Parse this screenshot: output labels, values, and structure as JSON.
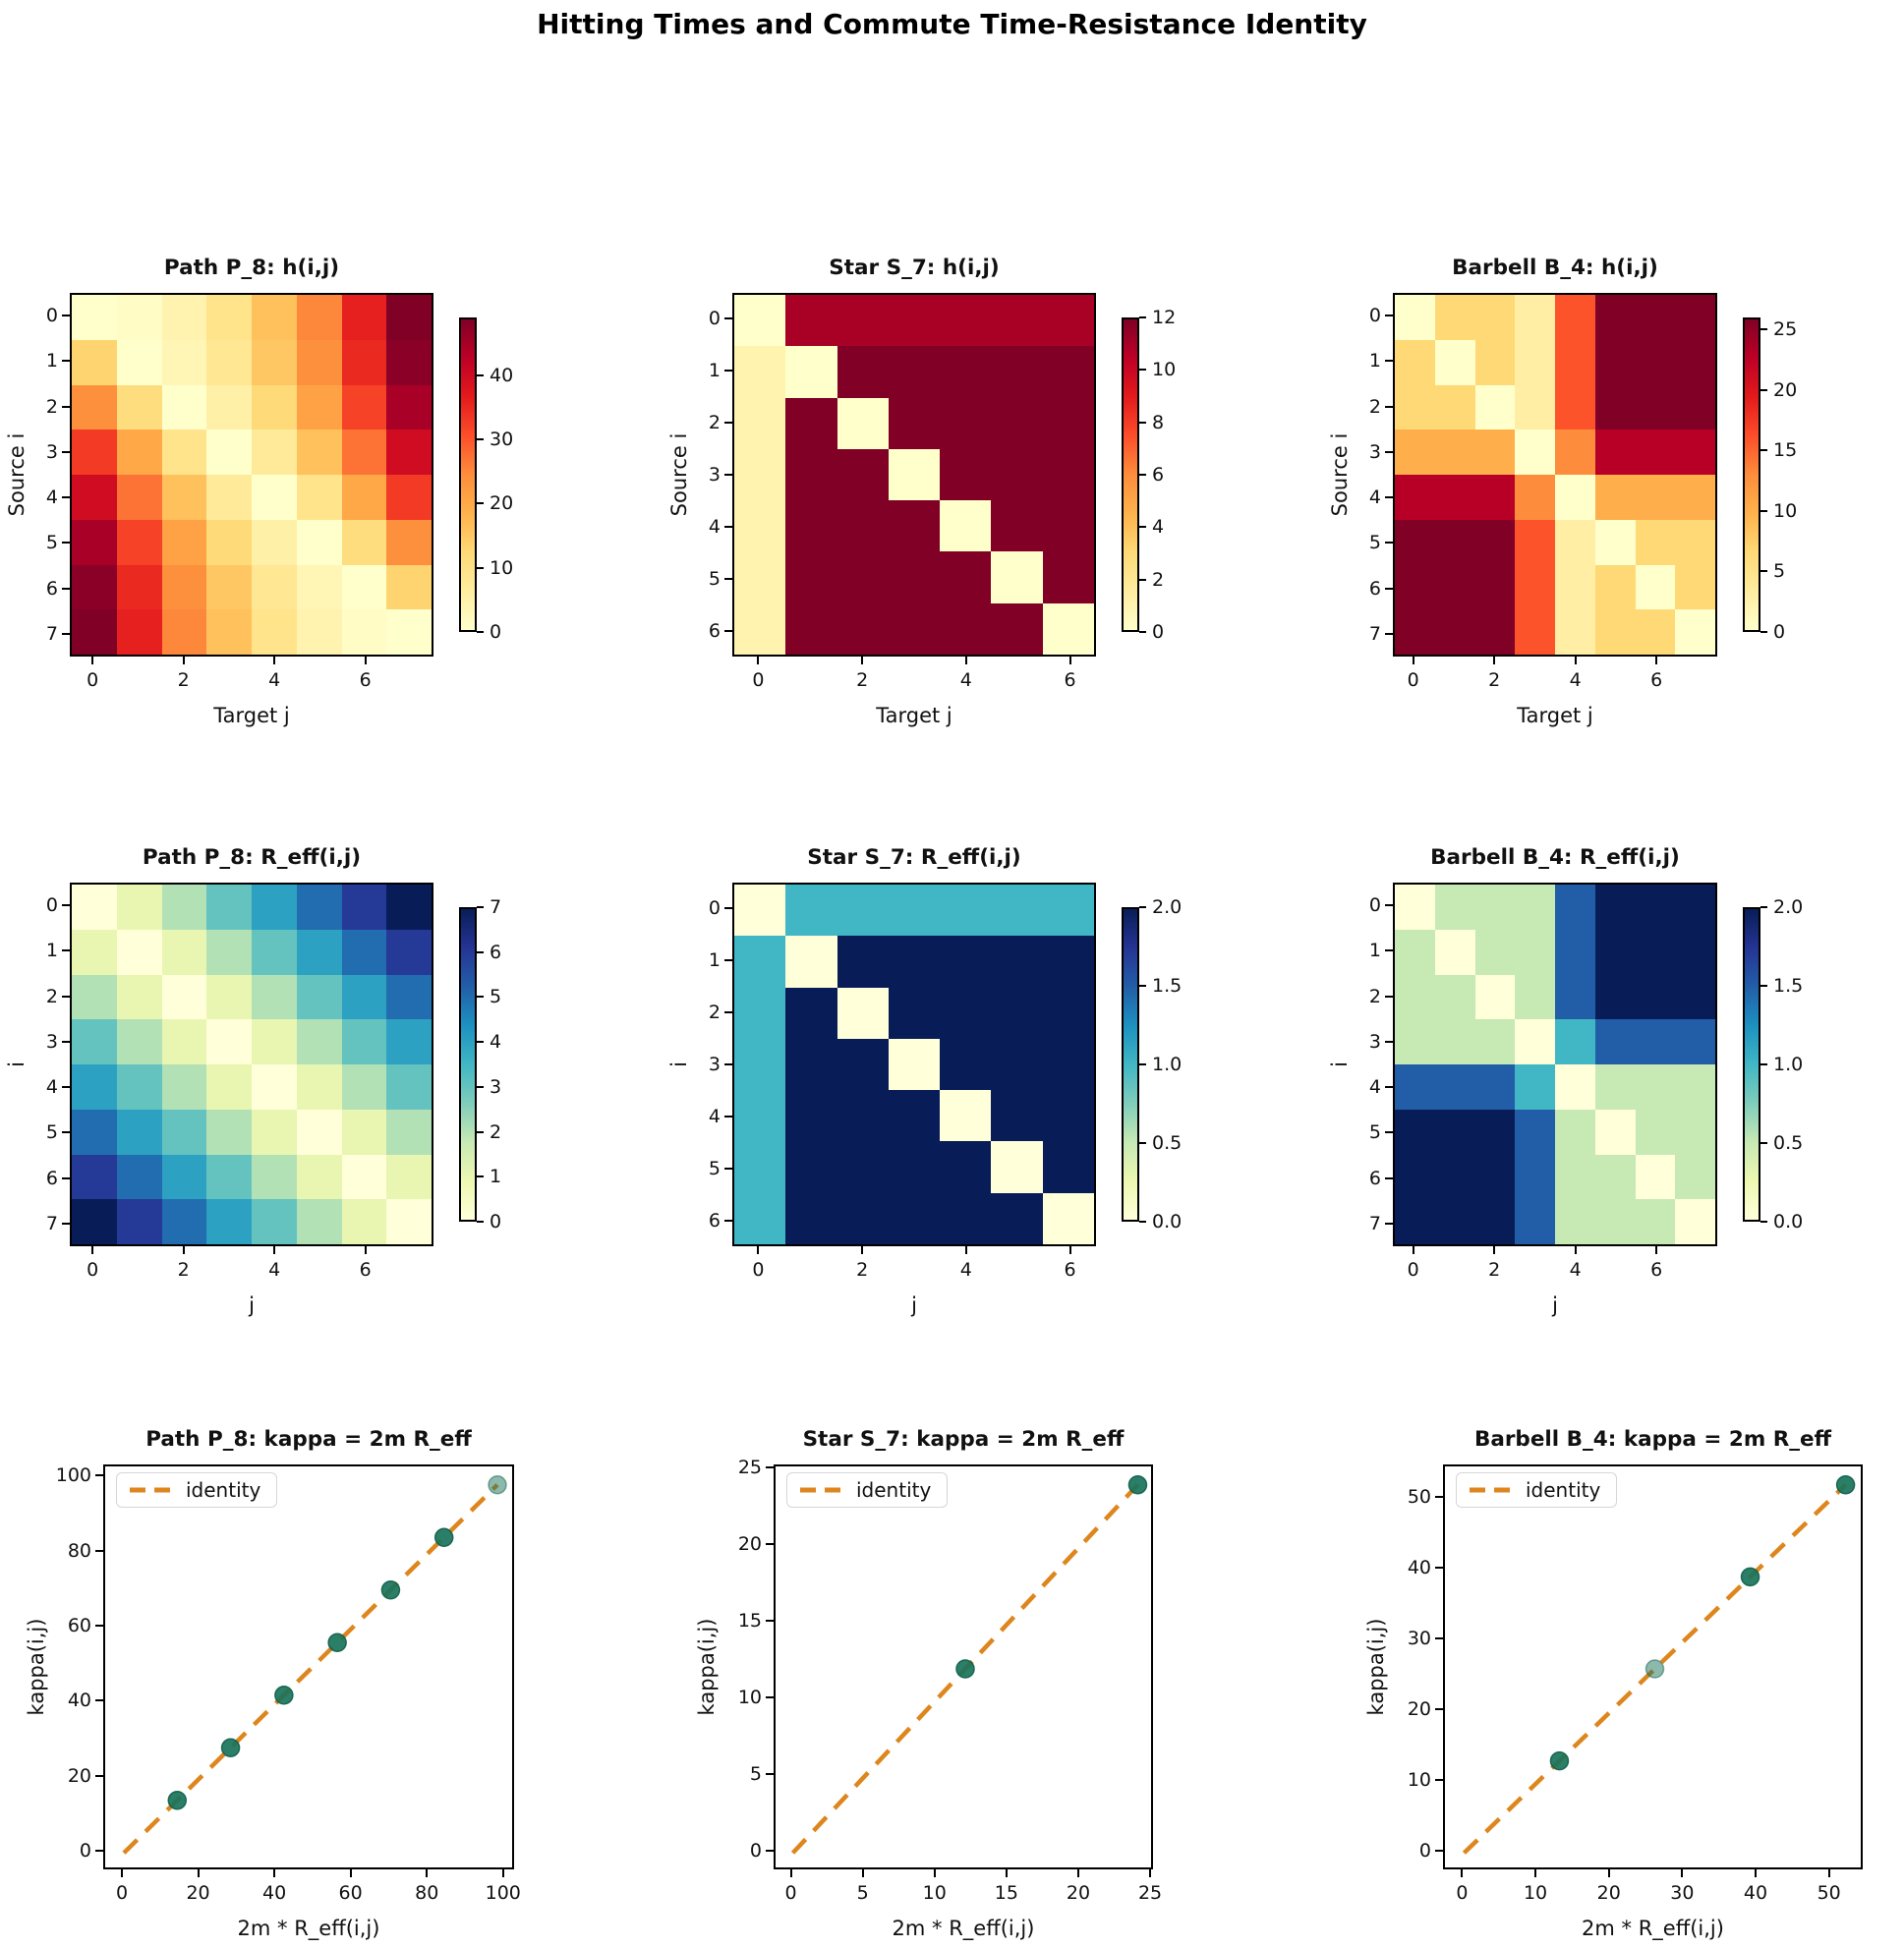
{
  "suptitle": "Hitting Times and Commute Time-Resistance Identity",
  "colors": {
    "background": "#ffffff",
    "text": "#111111",
    "spine": "#000000",
    "identity_line": "#de861e",
    "marker": "#19735a",
    "marker_edge": "#12604a",
    "legend_border": "#d6d6d6"
  },
  "colormaps": {
    "YlOrRd": [
      "#ffffcc",
      "#ffeda0",
      "#fed976",
      "#feb24c",
      "#fd8d3c",
      "#fc4e2a",
      "#e31a1c",
      "#bd0026",
      "#800026"
    ],
    "YlGnBu": [
      "#ffffd9",
      "#edf8b1",
      "#c7e9b4",
      "#7fcdbb",
      "#41b6c4",
      "#1d91c0",
      "#225ea8",
      "#253494",
      "#081d58"
    ]
  },
  "chart_data": [
    {
      "id": "path-hitting",
      "type": "heatmap",
      "grid": {
        "row": 0,
        "col": 0
      },
      "title": "Path P_8: h(i,j)",
      "xlabel": "Target j",
      "ylabel": "Source i",
      "cmap": "YlOrRd",
      "vmin": 0,
      "vmax": 49,
      "xticks": {
        "values": [
          0,
          2,
          4,
          6
        ],
        "labels": [
          "0",
          "2",
          "4",
          "6"
        ]
      },
      "yticks": {
        "values": [
          0,
          1,
          2,
          3,
          4,
          5,
          6,
          7
        ],
        "labels": [
          "0",
          "1",
          "2",
          "3",
          "4",
          "5",
          "6",
          "7"
        ]
      },
      "colorbar_ticks": {
        "values": [
          0,
          10,
          20,
          30,
          40
        ],
        "labels": [
          "0",
          "10",
          "20",
          "30",
          "40"
        ]
      },
      "matrix": [
        [
          0,
          1,
          4,
          9,
          16,
          25,
          36,
          49
        ],
        [
          13,
          0,
          3,
          8,
          15,
          24,
          35,
          48
        ],
        [
          24,
          11,
          0,
          5,
          12,
          21,
          32,
          45
        ],
        [
          33,
          20,
          9,
          0,
          7,
          16,
          27,
          40
        ],
        [
          40,
          27,
          16,
          7,
          0,
          9,
          20,
          33
        ],
        [
          45,
          32,
          21,
          12,
          5,
          0,
          11,
          24
        ],
        [
          48,
          35,
          24,
          15,
          8,
          3,
          0,
          13
        ],
        [
          49,
          36,
          25,
          16,
          9,
          4,
          1,
          0
        ]
      ]
    },
    {
      "id": "star-hitting",
      "type": "heatmap",
      "grid": {
        "row": 0,
        "col": 1
      },
      "title": "Star S_7: h(i,j)",
      "xlabel": "Target j",
      "ylabel": "Source i",
      "cmap": "YlOrRd",
      "vmin": 0,
      "vmax": 12,
      "xticks": {
        "values": [
          0,
          2,
          4,
          6
        ],
        "labels": [
          "0",
          "2",
          "4",
          "6"
        ]
      },
      "yticks": {
        "values": [
          0,
          1,
          2,
          3,
          4,
          5,
          6
        ],
        "labels": [
          "0",
          "1",
          "2",
          "3",
          "4",
          "5",
          "6"
        ]
      },
      "colorbar_ticks": {
        "values": [
          0,
          2,
          4,
          6,
          8,
          10,
          12
        ],
        "labels": [
          "0",
          "2",
          "4",
          "6",
          "8",
          "10",
          "12"
        ]
      },
      "matrix": [
        [
          0,
          11,
          11,
          11,
          11,
          11,
          11
        ],
        [
          1,
          0,
          12,
          12,
          12,
          12,
          12
        ],
        [
          1,
          12,
          0,
          12,
          12,
          12,
          12
        ],
        [
          1,
          12,
          12,
          0,
          12,
          12,
          12
        ],
        [
          1,
          12,
          12,
          12,
          0,
          12,
          12
        ],
        [
          1,
          12,
          12,
          12,
          12,
          0,
          12
        ],
        [
          1,
          12,
          12,
          12,
          12,
          12,
          0
        ]
      ]
    },
    {
      "id": "barbell-hitting",
      "type": "heatmap",
      "grid": {
        "row": 0,
        "col": 2
      },
      "title": "Barbell B_4: h(i,j)",
      "xlabel": "Target j",
      "ylabel": "Source i",
      "cmap": "YlOrRd",
      "vmin": 0,
      "vmax": 26,
      "xticks": {
        "values": [
          0,
          2,
          4,
          6
        ],
        "labels": [
          "0",
          "2",
          "4",
          "6"
        ]
      },
      "yticks": {
        "values": [
          0,
          1,
          2,
          3,
          4,
          5,
          6,
          7
        ],
        "labels": [
          "0",
          "1",
          "2",
          "3",
          "4",
          "5",
          "6",
          "7"
        ]
      },
      "colorbar_ticks": {
        "values": [
          0,
          5,
          10,
          15,
          20,
          25
        ],
        "labels": [
          "0",
          "5",
          "10",
          "15",
          "20",
          "25"
        ]
      },
      "matrix": [
        [
          0,
          6.5,
          6.5,
          3,
          16,
          26,
          26,
          26
        ],
        [
          6.5,
          0,
          6.5,
          3,
          16,
          26,
          26,
          26
        ],
        [
          6.5,
          6.5,
          0,
          3,
          16,
          26,
          26,
          26
        ],
        [
          10,
          10,
          10,
          0,
          13,
          23,
          23,
          23
        ],
        [
          23,
          23,
          23,
          13,
          0,
          10,
          10,
          10
        ],
        [
          26,
          26,
          26,
          16,
          3,
          0,
          6.5,
          6.5
        ],
        [
          26,
          26,
          26,
          16,
          3,
          6.5,
          0,
          6.5
        ],
        [
          26,
          26,
          26,
          16,
          3,
          6.5,
          6.5,
          0
        ]
      ]
    },
    {
      "id": "path-resistance",
      "type": "heatmap",
      "grid": {
        "row": 1,
        "col": 0
      },
      "title": "Path P_8: R_eff(i,j)",
      "xlabel": "j",
      "ylabel": "i",
      "cmap": "YlGnBu",
      "vmin": 0,
      "vmax": 7,
      "xticks": {
        "values": [
          0,
          2,
          4,
          6
        ],
        "labels": [
          "0",
          "2",
          "4",
          "6"
        ]
      },
      "yticks": {
        "values": [
          0,
          1,
          2,
          3,
          4,
          5,
          6,
          7
        ],
        "labels": [
          "0",
          "1",
          "2",
          "3",
          "4",
          "5",
          "6",
          "7"
        ]
      },
      "colorbar_ticks": {
        "values": [
          0,
          1,
          2,
          3,
          4,
          5,
          6,
          7
        ],
        "labels": [
          "0",
          "1",
          "2",
          "3",
          "4",
          "5",
          "6",
          "7"
        ]
      },
      "matrix": [
        [
          0,
          1,
          2,
          3,
          4,
          5,
          6,
          7
        ],
        [
          1,
          0,
          1,
          2,
          3,
          4,
          5,
          6
        ],
        [
          2,
          1,
          0,
          1,
          2,
          3,
          4,
          5
        ],
        [
          3,
          2,
          1,
          0,
          1,
          2,
          3,
          4
        ],
        [
          4,
          3,
          2,
          1,
          0,
          1,
          2,
          3
        ],
        [
          5,
          4,
          3,
          2,
          1,
          0,
          1,
          2
        ],
        [
          6,
          5,
          4,
          3,
          2,
          1,
          0,
          1
        ],
        [
          7,
          6,
          5,
          4,
          3,
          2,
          1,
          0
        ]
      ]
    },
    {
      "id": "star-resistance",
      "type": "heatmap",
      "grid": {
        "row": 1,
        "col": 1
      },
      "title": "Star S_7: R_eff(i,j)",
      "xlabel": "j",
      "ylabel": "i",
      "cmap": "YlGnBu",
      "vmin": 0,
      "vmax": 2,
      "xticks": {
        "values": [
          0,
          2,
          4,
          6
        ],
        "labels": [
          "0",
          "2",
          "4",
          "6"
        ]
      },
      "yticks": {
        "values": [
          0,
          1,
          2,
          3,
          4,
          5,
          6
        ],
        "labels": [
          "0",
          "1",
          "2",
          "3",
          "4",
          "5",
          "6"
        ]
      },
      "colorbar_ticks": {
        "values": [
          0,
          0.5,
          1,
          1.5,
          2
        ],
        "labels": [
          "0.0",
          "0.5",
          "1.0",
          "1.5",
          "2.0"
        ]
      },
      "matrix": [
        [
          0,
          1,
          1,
          1,
          1,
          1,
          1
        ],
        [
          1,
          0,
          2,
          2,
          2,
          2,
          2
        ],
        [
          1,
          2,
          0,
          2,
          2,
          2,
          2
        ],
        [
          1,
          2,
          2,
          0,
          2,
          2,
          2
        ],
        [
          1,
          2,
          2,
          2,
          0,
          2,
          2
        ],
        [
          1,
          2,
          2,
          2,
          2,
          0,
          2
        ],
        [
          1,
          2,
          2,
          2,
          2,
          2,
          0
        ]
      ]
    },
    {
      "id": "barbell-resistance",
      "type": "heatmap",
      "grid": {
        "row": 1,
        "col": 2
      },
      "title": "Barbell B_4: R_eff(i,j)",
      "xlabel": "j",
      "ylabel": "i",
      "cmap": "YlGnBu",
      "vmin": 0,
      "vmax": 2,
      "xticks": {
        "values": [
          0,
          2,
          4,
          6
        ],
        "labels": [
          "0",
          "2",
          "4",
          "6"
        ]
      },
      "yticks": {
        "values": [
          0,
          1,
          2,
          3,
          4,
          5,
          6,
          7
        ],
        "labels": [
          "0",
          "1",
          "2",
          "3",
          "4",
          "5",
          "6",
          "7"
        ]
      },
      "colorbar_ticks": {
        "values": [
          0,
          0.5,
          1,
          1.5,
          2
        ],
        "labels": [
          "0.0",
          "0.5",
          "1.0",
          "1.5",
          "2.0"
        ]
      },
      "matrix": [
        [
          0,
          0.5,
          0.5,
          0.5,
          1.5,
          2,
          2,
          2
        ],
        [
          0.5,
          0,
          0.5,
          0.5,
          1.5,
          2,
          2,
          2
        ],
        [
          0.5,
          0.5,
          0,
          0.5,
          1.5,
          2,
          2,
          2
        ],
        [
          0.5,
          0.5,
          0.5,
          0,
          1,
          1.5,
          1.5,
          1.5
        ],
        [
          1.5,
          1.5,
          1.5,
          1,
          0,
          0.5,
          0.5,
          0.5
        ],
        [
          2,
          2,
          2,
          1.5,
          0.5,
          0,
          0.5,
          0.5
        ],
        [
          2,
          2,
          2,
          1.5,
          0.5,
          0.5,
          0,
          0.5
        ],
        [
          2,
          2,
          2,
          1.5,
          0.5,
          0.5,
          0.5,
          0
        ]
      ]
    },
    {
      "id": "path-identity",
      "type": "scatter",
      "grid": {
        "row": 2,
        "col": 0
      },
      "title": "Path P_8: kappa = 2m R_eff",
      "xlabel": "2m * R_eff(i,j)",
      "ylabel": "kappa(i,j)",
      "legend_label": "identity",
      "legend_loc": "upper left",
      "xlim": [
        -4.9,
        102.9
      ],
      "ylim": [
        -4.9,
        102.9
      ],
      "xticks": {
        "values": [
          0,
          20,
          40,
          60,
          80,
          100
        ],
        "labels": [
          "0",
          "20",
          "40",
          "60",
          "80",
          "100"
        ]
      },
      "yticks": {
        "values": [
          0,
          20,
          40,
          60,
          80,
          100
        ],
        "labels": [
          "0",
          "20",
          "40",
          "60",
          "80",
          "100"
        ]
      },
      "line": {
        "x": [
          0,
          98
        ],
        "y": [
          0,
          98
        ],
        "style": "dashed"
      },
      "points": {
        "x": [
          14,
          28,
          42,
          56,
          70,
          84,
          98
        ],
        "y": [
          14,
          28,
          42,
          56,
          70,
          84,
          98
        ],
        "overlap_counts": [
          7,
          6,
          5,
          4,
          3,
          2,
          1
        ]
      }
    },
    {
      "id": "star-identity",
      "type": "scatter",
      "grid": {
        "row": 2,
        "col": 1
      },
      "title": "Star S_7: kappa = 2m R_eff",
      "xlabel": "2m * R_eff(i,j)",
      "ylabel": "kappa(i,j)",
      "legend_label": "identity",
      "legend_loc": "upper left",
      "xlim": [
        -1.2,
        25.2
      ],
      "ylim": [
        -1.2,
        25.2
      ],
      "xticks": {
        "values": [
          0,
          5,
          10,
          15,
          20,
          25
        ],
        "labels": [
          "0",
          "5",
          "10",
          "15",
          "20",
          "25"
        ]
      },
      "yticks": {
        "values": [
          0,
          5,
          10,
          15,
          20,
          25
        ],
        "labels": [
          "0",
          "5",
          "10",
          "15",
          "20",
          "25"
        ]
      },
      "line": {
        "x": [
          0,
          24
        ],
        "y": [
          0,
          24
        ],
        "style": "dashed"
      },
      "points": {
        "x": [
          12,
          24
        ],
        "y": [
          12,
          24
        ],
        "overlap_counts": [
          6,
          15
        ]
      }
    },
    {
      "id": "barbell-identity",
      "type": "scatter",
      "grid": {
        "row": 2,
        "col": 2
      },
      "title": "Barbell B_4: kappa = 2m R_eff",
      "xlabel": "2m * R_eff(i,j)",
      "ylabel": "kappa(i,j)",
      "legend_label": "identity",
      "legend_loc": "upper left",
      "xlim": [
        -2.6,
        54.6
      ],
      "ylim": [
        -2.6,
        54.6
      ],
      "xticks": {
        "values": [
          0,
          10,
          20,
          30,
          40,
          50
        ],
        "labels": [
          "0",
          "10",
          "20",
          "30",
          "40",
          "50"
        ]
      },
      "yticks": {
        "values": [
          0,
          10,
          20,
          30,
          40,
          50
        ],
        "labels": [
          "0",
          "10",
          "20",
          "30",
          "40",
          "50"
        ]
      },
      "line": {
        "x": [
          0,
          52
        ],
        "y": [
          0,
          52
        ],
        "style": "dashed"
      },
      "points": {
        "x": [
          13,
          26,
          39,
          52
        ],
        "y": [
          13,
          26,
          39,
          52
        ],
        "overlap_counts": [
          12,
          1,
          6,
          9
        ]
      }
    }
  ]
}
